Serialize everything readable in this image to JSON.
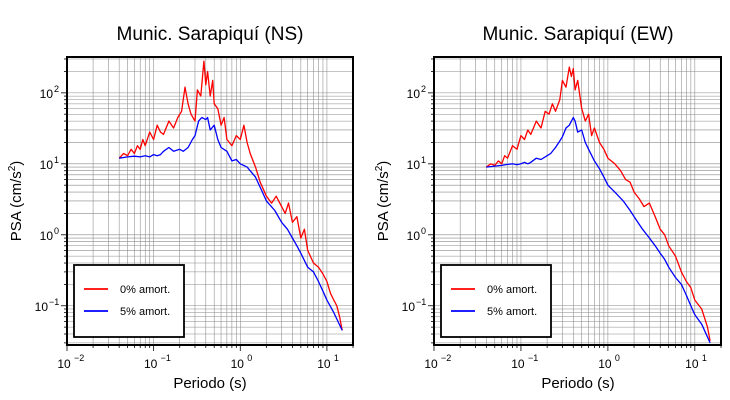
{
  "chart_data": [
    {
      "type": "line",
      "title": "Munic. Sarapiquí (NS)",
      "xlabel": "Periodo (s)",
      "ylabel_base": "PSA (cm/s",
      "ylabel_sup": "2",
      "ylabel_close": ")",
      "x_scale": "log",
      "y_scale": "log",
      "xlim": [
        0.01,
        20
      ],
      "ylim": [
        0.028,
        320
      ],
      "x_ticks": [
        {
          "base": "10",
          "exp": "−2",
          "value": 0.01
        },
        {
          "base": "10",
          "exp": "−1",
          "value": 0.1
        },
        {
          "base": "10",
          "exp": "0",
          "value": 1
        },
        {
          "base": "10",
          "exp": "1",
          "value": 10
        }
      ],
      "y_ticks": [
        {
          "base": "10",
          "exp": "−1",
          "value": 0.1
        },
        {
          "base": "10",
          "exp": "0",
          "value": 1
        },
        {
          "base": "10",
          "exp": "1",
          "value": 10
        },
        {
          "base": "10",
          "exp": "2",
          "value": 100
        }
      ],
      "grid": true,
      "legend_position": "bottom-left",
      "series": [
        {
          "name": "0% amort.",
          "color": "#ff0000",
          "x": [
            0.04,
            0.045,
            0.05,
            0.055,
            0.06,
            0.065,
            0.07,
            0.075,
            0.08,
            0.09,
            0.1,
            0.11,
            0.12,
            0.13,
            0.15,
            0.17,
            0.19,
            0.21,
            0.23,
            0.25,
            0.27,
            0.3,
            0.32,
            0.35,
            0.38,
            0.4,
            0.42,
            0.45,
            0.48,
            0.5,
            0.55,
            0.6,
            0.65,
            0.7,
            0.8,
            0.9,
            1.0,
            1.1,
            1.2,
            1.3,
            1.5,
            1.7,
            2.0,
            2.3,
            2.6,
            3.0,
            3.3,
            3.6,
            4.0,
            4.5,
            5.0,
            5.5,
            6.0,
            7.0,
            8.0,
            9.0,
            10.0,
            11.0,
            12.0,
            13.0,
            14.0,
            15.0
          ],
          "y": [
            12,
            14,
            13,
            16,
            14,
            18,
            16,
            22,
            18,
            28,
            22,
            35,
            28,
            26,
            40,
            32,
            45,
            55,
            120,
            70,
            50,
            40,
            110,
            90,
            280,
            130,
            200,
            90,
            150,
            70,
            60,
            35,
            45,
            22,
            18,
            25,
            22,
            35,
            20,
            14,
            9,
            5.5,
            3.5,
            2.8,
            3.5,
            2.5,
            2.0,
            2.8,
            1.5,
            1.8,
            0.9,
            1.2,
            0.6,
            0.4,
            0.35,
            0.28,
            0.22,
            0.15,
            0.12,
            0.1,
            0.07,
            0.045
          ]
        },
        {
          "name": "5% amort.",
          "color": "#0000ff",
          "x": [
            0.04,
            0.05,
            0.06,
            0.07,
            0.08,
            0.09,
            0.1,
            0.11,
            0.12,
            0.13,
            0.15,
            0.17,
            0.2,
            0.22,
            0.25,
            0.28,
            0.3,
            0.33,
            0.36,
            0.4,
            0.42,
            0.45,
            0.5,
            0.55,
            0.6,
            0.7,
            0.8,
            0.9,
            1.0,
            1.2,
            1.5,
            1.8,
            2.0,
            2.5,
            3.0,
            3.5,
            4.0,
            4.5,
            5.0,
            6.0,
            7.0,
            8.0,
            9.0,
            10.0,
            12.0,
            15.0
          ],
          "y": [
            12,
            12.5,
            12.8,
            12.5,
            13,
            12.5,
            13.5,
            13,
            13.5,
            15,
            17,
            15,
            16,
            15,
            17,
            22,
            25,
            40,
            45,
            42,
            45,
            30,
            35,
            22,
            17,
            15,
            11,
            11.5,
            10,
            9,
            6.5,
            4,
            3,
            2.2,
            1.5,
            1.2,
            0.9,
            0.7,
            0.55,
            0.35,
            0.3,
            0.22,
            0.16,
            0.12,
            0.08,
            0.045
          ]
        }
      ]
    },
    {
      "type": "line",
      "title": "Munic. Sarapiquí (EW)",
      "xlabel": "Periodo (s)",
      "ylabel_base": "PSA (cm/s",
      "ylabel_sup": "2",
      "ylabel_close": ")",
      "x_scale": "log",
      "y_scale": "log",
      "xlim": [
        0.01,
        20
      ],
      "ylim": [
        0.028,
        320
      ],
      "x_ticks": [
        {
          "base": "10",
          "exp": "−2",
          "value": 0.01
        },
        {
          "base": "10",
          "exp": "−1",
          "value": 0.1
        },
        {
          "base": "10",
          "exp": "0",
          "value": 1
        },
        {
          "base": "10",
          "exp": "1",
          "value": 10
        }
      ],
      "y_ticks": [
        {
          "base": "10",
          "exp": "−1",
          "value": 0.1
        },
        {
          "base": "10",
          "exp": "0",
          "value": 1
        },
        {
          "base": "10",
          "exp": "1",
          "value": 10
        },
        {
          "base": "10",
          "exp": "2",
          "value": 100
        }
      ],
      "grid": true,
      "legend_position": "bottom-left",
      "series": [
        {
          "name": "0% amort.",
          "color": "#ff0000",
          "x": [
            0.04,
            0.045,
            0.05,
            0.055,
            0.06,
            0.065,
            0.07,
            0.08,
            0.09,
            0.1,
            0.11,
            0.12,
            0.13,
            0.15,
            0.17,
            0.19,
            0.21,
            0.23,
            0.25,
            0.28,
            0.3,
            0.33,
            0.36,
            0.38,
            0.4,
            0.42,
            0.45,
            0.5,
            0.55,
            0.6,
            0.65,
            0.7,
            0.8,
            0.9,
            1.0,
            1.2,
            1.4,
            1.6,
            1.8,
            2.0,
            2.3,
            2.6,
            3.0,
            3.5,
            4.0,
            4.5,
            5.0,
            6.0,
            7.0,
            8.0,
            9.0,
            10.0,
            12.0,
            14.0,
            15.0
          ],
          "y": [
            9,
            10,
            9.5,
            11,
            10,
            13,
            12,
            18,
            16,
            25,
            22,
            30,
            26,
            40,
            32,
            55,
            50,
            70,
            55,
            80,
            150,
            120,
            230,
            170,
            220,
            110,
            150,
            60,
            40,
            50,
            25,
            32,
            20,
            16,
            12,
            10,
            8,
            6,
            5.5,
            4,
            3.2,
            2.5,
            2.8,
            1.8,
            1.2,
            1.0,
            0.7,
            0.5,
            0.3,
            0.22,
            0.18,
            0.12,
            0.09,
            0.05,
            0.032
          ]
        },
        {
          "name": "5% amort.",
          "color": "#0000ff",
          "x": [
            0.04,
            0.05,
            0.06,
            0.07,
            0.08,
            0.09,
            0.1,
            0.11,
            0.12,
            0.13,
            0.15,
            0.17,
            0.2,
            0.22,
            0.25,
            0.28,
            0.3,
            0.33,
            0.36,
            0.4,
            0.42,
            0.45,
            0.5,
            0.55,
            0.6,
            0.7,
            0.8,
            0.9,
            1.0,
            1.2,
            1.5,
            1.8,
            2.0,
            2.5,
            3.0,
            3.5,
            4.0,
            4.5,
            5.0,
            6.0,
            7.0,
            8.0,
            9.0,
            10.0,
            12.0,
            15.0
          ],
          "y": [
            9,
            9.3,
            9.5,
            9.8,
            10,
            9.7,
            10,
            10.5,
            10,
            10.5,
            12,
            11.5,
            13,
            14,
            17,
            21,
            24,
            32,
            35,
            45,
            40,
            28,
            30,
            20,
            16,
            11,
            8.5,
            6.5,
            5,
            4,
            3,
            2.2,
            1.8,
            1.2,
            0.9,
            0.7,
            0.55,
            0.45,
            0.35,
            0.25,
            0.2,
            0.14,
            0.1,
            0.075,
            0.055,
            0.03
          ]
        }
      ]
    }
  ]
}
